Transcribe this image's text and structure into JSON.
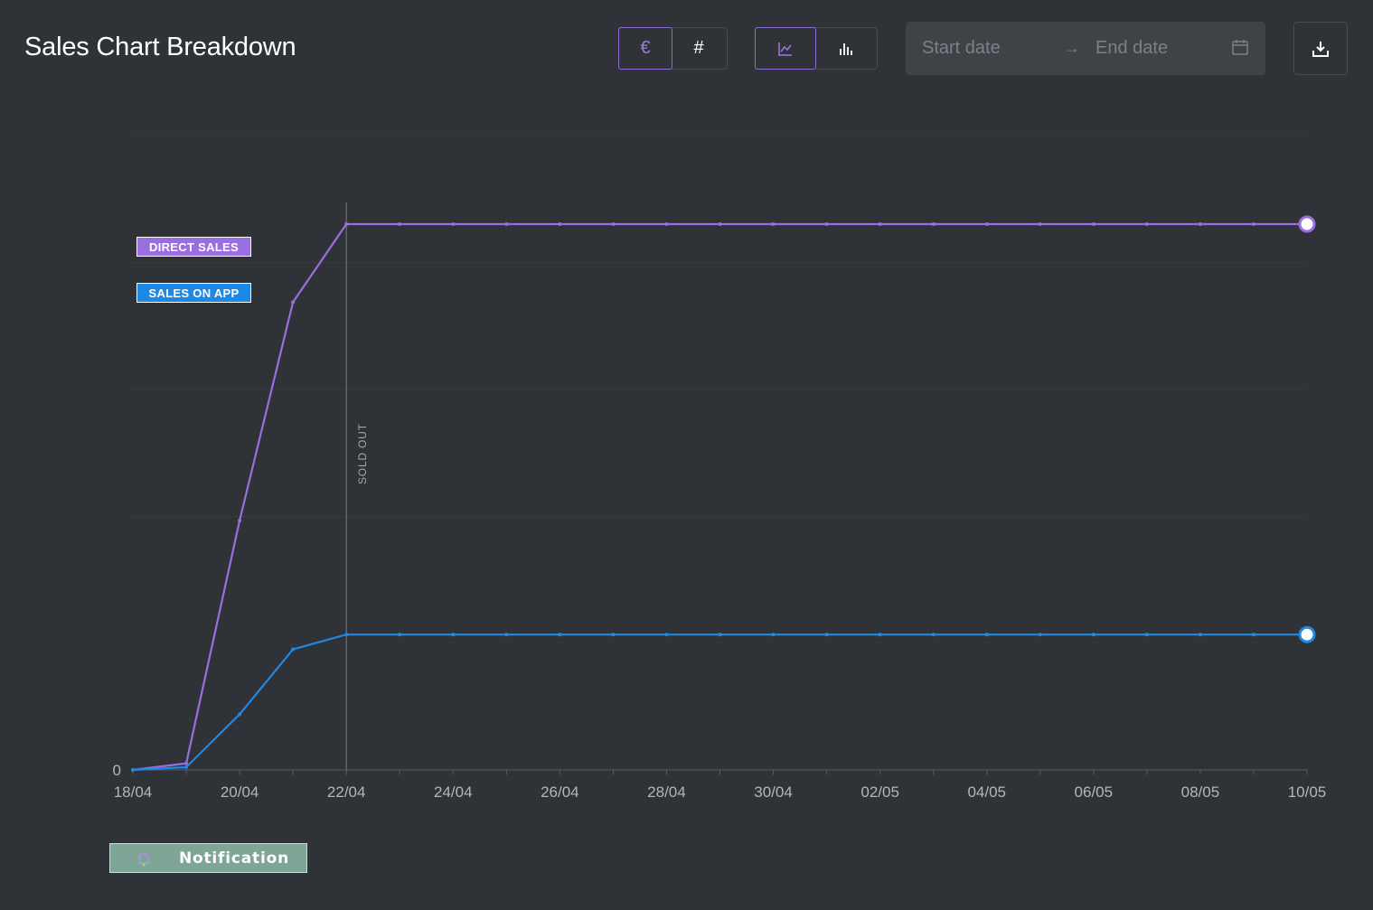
{
  "header": {
    "title": "Sales Chart Breakdown",
    "currency_toggle": {
      "options": [
        "€",
        "#"
      ],
      "selected": "€"
    },
    "chart_type_toggle": {
      "options": [
        "line-chart-icon",
        "bar-chart-icon"
      ],
      "selected": "line"
    },
    "date_range": {
      "start_placeholder": "Start date",
      "arrow": "→",
      "end_placeholder": "End date",
      "icon": "calendar-icon"
    },
    "download_icon": "download-icon"
  },
  "legend": {
    "direct": "DIRECT SALES",
    "app": "SALES ON APP"
  },
  "notification": {
    "label": "Notification",
    "icon": "bell-icon"
  },
  "colors": {
    "direct": "#9b6ee0",
    "app": "#1e88e5",
    "background": "#2f3237"
  },
  "chart_data": {
    "type": "line",
    "x": [
      "18/04",
      "19/04",
      "20/04",
      "21/04",
      "22/04",
      "23/04",
      "24/04",
      "25/04",
      "26/04",
      "27/04",
      "28/04",
      "29/04",
      "30/04",
      "01/05",
      "02/05",
      "03/05",
      "04/05",
      "05/05",
      "06/05",
      "07/05",
      "08/05",
      "09/05",
      "10/05"
    ],
    "x_tick_labels": [
      "18/04",
      "20/04",
      "22/04",
      "24/04",
      "26/04",
      "28/04",
      "30/04",
      "02/05",
      "04/05",
      "06/05",
      "08/05",
      "10/05"
    ],
    "y_tick_labels": [
      "0"
    ],
    "series": [
      {
        "name": "DIRECT SALES",
        "values": [
          0,
          1.2,
          45.7,
          85.7,
          100,
          100,
          100,
          100,
          100,
          100,
          100,
          100,
          100,
          100,
          100,
          100,
          100,
          100,
          100,
          100,
          100,
          100,
          100
        ]
      },
      {
        "name": "SALES ON APP",
        "values": [
          0,
          0.5,
          10.2,
          22.1,
          24.8,
          24.8,
          24.8,
          24.8,
          24.8,
          24.8,
          24.8,
          24.8,
          24.8,
          24.8,
          24.8,
          24.8,
          24.8,
          24.8,
          24.8,
          24.8,
          24.8,
          24.8,
          24.8
        ]
      }
    ],
    "annotation": {
      "x": "22/04",
      "label": "SOLD OUT"
    },
    "grid": true,
    "legend": "top-left"
  }
}
